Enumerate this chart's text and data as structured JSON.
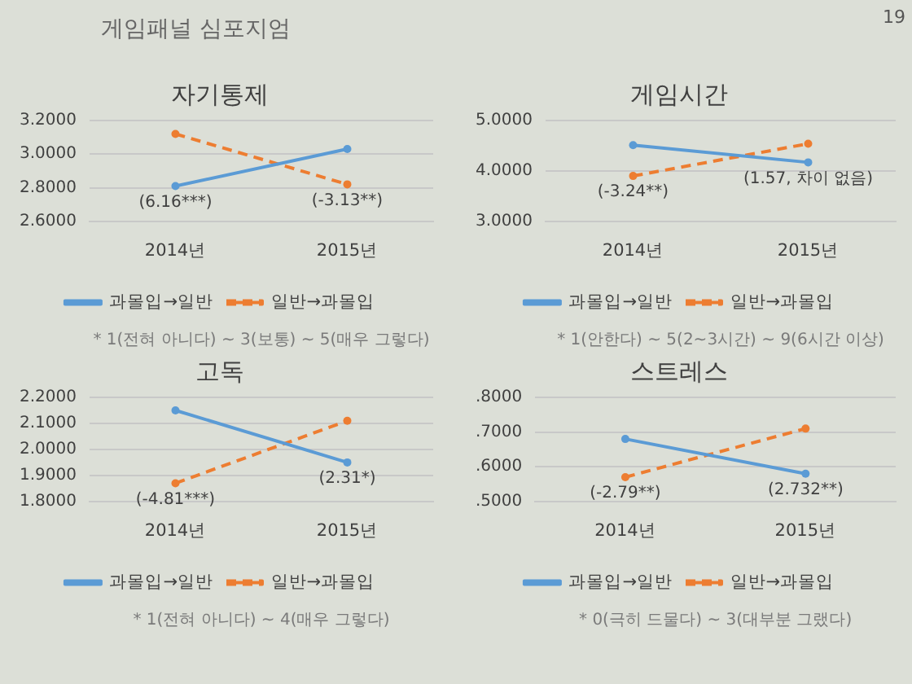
{
  "chart_data": [
    {
      "type": "other",
      "title": "게임패널 심포지엄",
      "annotations": [
        "19"
      ]
    },
    {
      "type": "line",
      "title": "자기통제",
      "categories": [
        "2014년",
        "2015년"
      ],
      "series": [
        {
          "name": "과몰입→일반",
          "color": "#5b9bd5",
          "line_style": "solid",
          "values": [
            2.81,
            3.03
          ]
        },
        {
          "name": "일반→과몰입",
          "color": "#ed7d31",
          "line_style": "dashed",
          "values": [
            3.12,
            2.82
          ]
        }
      ],
      "ylim": [
        2.6,
        3.2
      ],
      "yticks": [
        {
          "value": 2.6,
          "label": "2.6000"
        },
        {
          "value": 2.8,
          "label": "2.8000"
        },
        {
          "value": 3.0,
          "label": "3.0000"
        },
        {
          "value": 3.2,
          "label": "3.2000"
        }
      ],
      "grid": "y",
      "legend": "bottom",
      "marker": "circle",
      "annotations": [
        {
          "text": "(6.16***)",
          "x": "2014년",
          "y": 2.81
        },
        {
          "text": "(-3.13**)",
          "x": "2015년",
          "y": 2.82
        },
        "* 1(전혀 아니다) ~ 3(보통) ~ 5(매우 그렇다)"
      ]
    },
    {
      "type": "line",
      "title": "게임시간",
      "categories": [
        "2014년",
        "2015년"
      ],
      "series": [
        {
          "name": "과몰입→일반",
          "color": "#5b9bd5",
          "line_style": "solid",
          "values": [
            4.51,
            4.17
          ]
        },
        {
          "name": "일반→과몰입",
          "color": "#ed7d31",
          "line_style": "dashed",
          "values": [
            3.9,
            4.54
          ]
        }
      ],
      "ylim": [
        3.0,
        5.0
      ],
      "yticks": [
        {
          "value": 3.0,
          "label": "3.0000"
        },
        {
          "value": 4.0,
          "label": "4.0000"
        },
        {
          "value": 5.0,
          "label": "5.0000"
        }
      ],
      "grid": "y",
      "legend": "bottom",
      "marker": "circle",
      "annotations": [
        {
          "text": "(-3.24**)",
          "x": "2014년",
          "y": 3.9
        },
        {
          "text": "(1.57, 차이 없음)",
          "x": "2015년",
          "y": 4.17
        },
        "* 1(안한다) ~ 5(2~3시간) ~ 9(6시간 이상)"
      ]
    },
    {
      "type": "line",
      "title": "고독",
      "categories": [
        "2014년",
        "2015년"
      ],
      "series": [
        {
          "name": "과몰입→일반",
          "color": "#5b9bd5",
          "line_style": "solid",
          "values": [
            2.15,
            1.95
          ]
        },
        {
          "name": "일반→과몰입",
          "color": "#ed7d31",
          "line_style": "dashed",
          "values": [
            1.87,
            2.11
          ]
        }
      ],
      "ylim": [
        1.8,
        2.2
      ],
      "yticks": [
        {
          "value": 1.8,
          "label": "1.8000"
        },
        {
          "value": 1.9,
          "label": "1.9000"
        },
        {
          "value": 2.0,
          "label": "2.0000"
        },
        {
          "value": 2.1,
          "label": "2.1000"
        },
        {
          "value": 2.2,
          "label": "2.2000"
        }
      ],
      "grid": "y",
      "legend": "bottom",
      "marker": "circle",
      "annotations": [
        {
          "text": "(-4.81***)",
          "x": "2014년",
          "y": 1.87
        },
        {
          "text": "(2.31*)",
          "x": "2015년",
          "y": 1.95
        },
        "* 1(전혀 아니다) ~ 4(매우 그렇다)"
      ]
    },
    {
      "type": "line",
      "title": "스트레스",
      "categories": [
        "2014년",
        "2015년"
      ],
      "series": [
        {
          "name": "과몰입→일반",
          "color": "#5b9bd5",
          "line_style": "solid",
          "values": [
            0.68,
            0.58
          ]
        },
        {
          "name": "일반→과몰입",
          "color": "#ed7d31",
          "line_style": "dashed",
          "values": [
            0.57,
            0.71
          ]
        }
      ],
      "ylim": [
        0.5,
        0.8
      ],
      "yticks": [
        {
          "value": 0.5,
          "label": ".5000"
        },
        {
          "value": 0.6,
          "label": ".6000"
        },
        {
          "value": 0.7,
          "label": ".7000"
        },
        {
          "value": 0.8,
          "label": ".8000"
        }
      ],
      "grid": "y",
      "legend": "bottom",
      "marker": "circle",
      "annotations": [
        {
          "text": "(-2.79**)",
          "x": "2014년",
          "y": 0.57
        },
        {
          "text": "(2.732**)",
          "x": "2015년",
          "y": 0.58
        },
        "* 0(극히 드물다) ~ 3(대부분 그랬다)"
      ]
    }
  ]
}
